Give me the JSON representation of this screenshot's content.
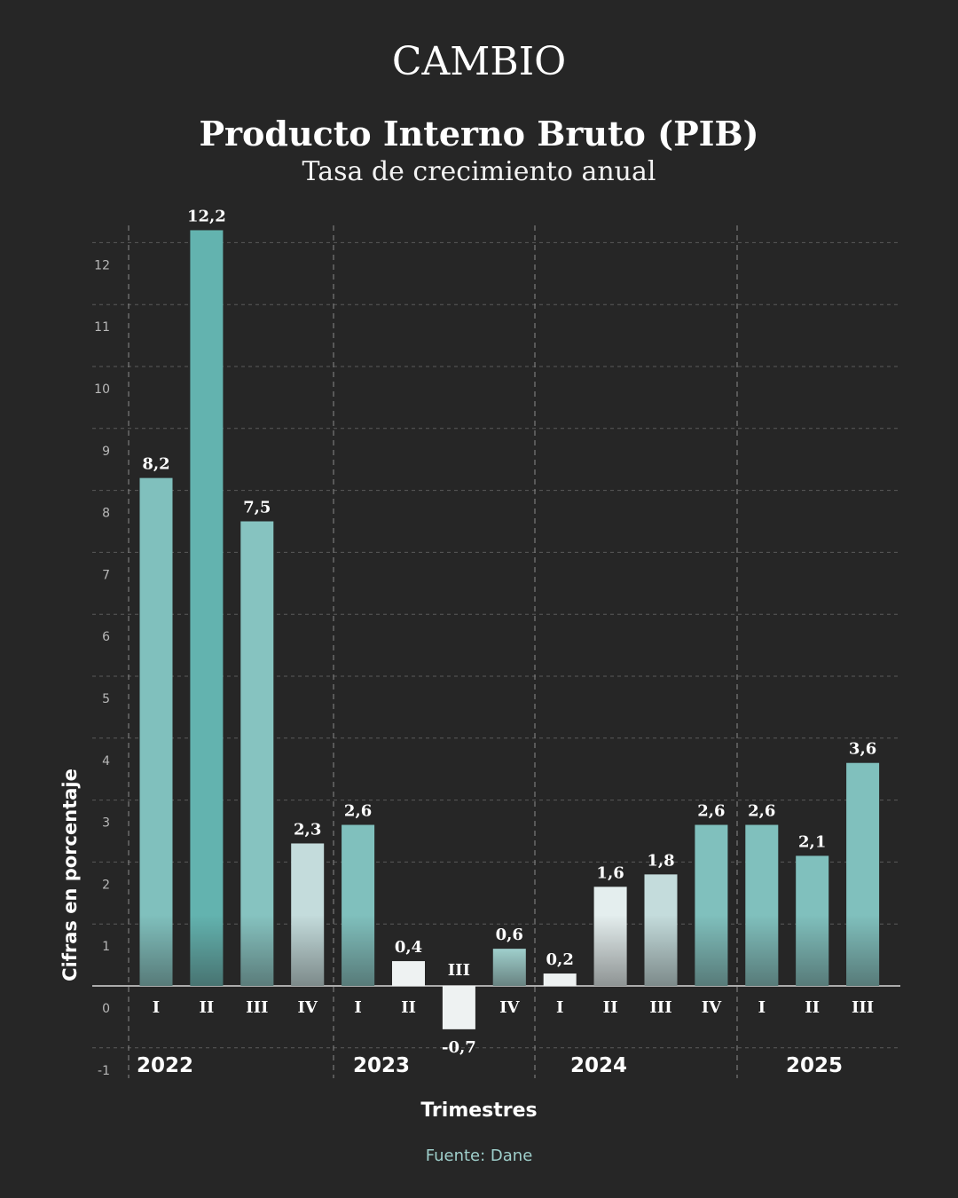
{
  "header": {
    "brand": "CAMBIO",
    "title": "Producto Interno Bruto (PIB)",
    "subtitle": "Tasa de crecimiento anual"
  },
  "footer": {
    "source": "Fuente: Dane"
  },
  "colors": {
    "background": "#262626",
    "bar_teal": "#80c0bd",
    "bar_teal_dark": "#63b3af",
    "bar_pale": "#c4dcdc",
    "bar_white": "#eef2f2",
    "source_text": "#9fd0cc",
    "grid": "#5a5a5a"
  },
  "chart_data": {
    "type": "bar",
    "title": "Producto Interno Bruto (PIB)",
    "subtitle": "Tasa de crecimiento anual",
    "xlabel": "Trimestres",
    "ylabel": "Cifras en porcentaje",
    "ylim": [
      -1,
      12
    ],
    "yticks": [
      "-1",
      "0",
      "1",
      "2",
      "3",
      "4",
      "5",
      "6",
      "7",
      "8",
      "9",
      "10",
      "11",
      "12"
    ],
    "grid": true,
    "groups": [
      "2022",
      "2023",
      "2024",
      "2025"
    ],
    "categories": [
      "I",
      "II",
      "III",
      "IV",
      "I",
      "II",
      "III",
      "IV",
      "I",
      "II",
      "III",
      "IV",
      "I",
      "II",
      "III"
    ],
    "group_index": [
      0,
      0,
      0,
      0,
      1,
      1,
      1,
      1,
      2,
      2,
      2,
      2,
      3,
      3,
      3
    ],
    "values": [
      8.2,
      12.2,
      7.5,
      2.3,
      2.6,
      0.4,
      -0.7,
      0.6,
      0.2,
      1.6,
      1.8,
      2.6,
      2.6,
      2.1,
      3.6
    ],
    "value_labels": [
      "8,2",
      "12,2",
      "7,5",
      "2,3",
      "2,6",
      "0,4",
      "-0,7",
      "0,6",
      "0,2",
      "1,6",
      "1,8",
      "2,6",
      "2,6",
      "2,1",
      "3,6"
    ],
    "bar_colors": [
      "#80c0bd",
      "#63b3af",
      "#86c3c0",
      "#c4dcdc",
      "#80c0bd",
      "#eef2f2",
      "#eef2f2",
      "#9fcfcc",
      "#eef2f2",
      "#e4eeee",
      "#c4dcdc",
      "#80c0bd",
      "#80c0bd",
      "#80c0bd",
      "#80c0bd"
    ]
  }
}
